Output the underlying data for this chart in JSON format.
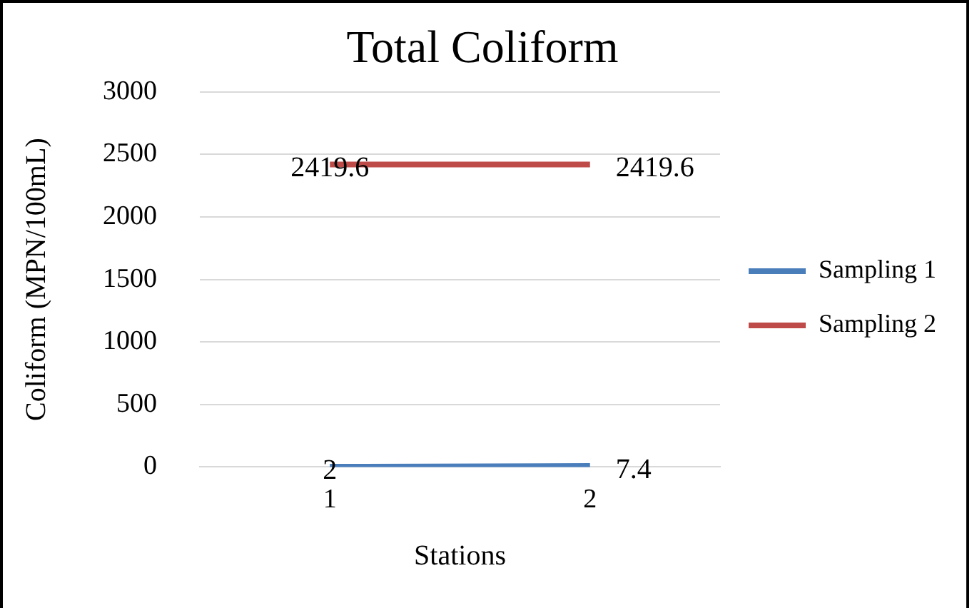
{
  "chart_data": {
    "type": "line",
    "title": "Total Coliform",
    "xlabel": "Stations",
    "ylabel": "Coliform (MPN/100mL)",
    "categories": [
      "1",
      "2"
    ],
    "series": [
      {
        "name": "Sampling 1",
        "color": "#4a7ebb",
        "values": [
          2,
          7.4
        ]
      },
      {
        "name": "Sampling 2",
        "color": "#be4b48",
        "values": [
          2419.6,
          2419.6
        ]
      }
    ],
    "ylim": [
      0,
      3000
    ],
    "yticks": [
      0,
      500,
      1000,
      1500,
      2000,
      2500,
      3000
    ],
    "grid": "y",
    "legend": "right",
    "data_labels": true
  }
}
